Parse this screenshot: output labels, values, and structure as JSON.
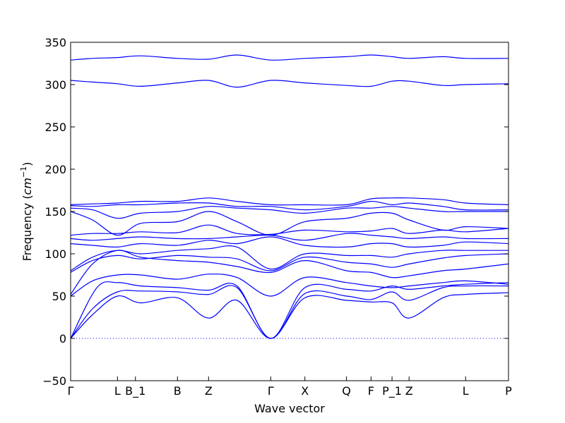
{
  "chart_data": {
    "type": "line",
    "title": "",
    "xlabel": "Wave vector",
    "ylabel": "Frequency (cm⁻¹)",
    "ylabel_parts": {
      "prefix": "Frequency (",
      "unit": "cm",
      "exp": "−1",
      "suffix": ")"
    },
    "ylim": [
      -50,
      350
    ],
    "yticks": [
      -50,
      0,
      50,
      100,
      150,
      200,
      250,
      300,
      350
    ],
    "grid": false,
    "legend": "none",
    "line_color": "#0000ff",
    "high_symmetry_points": [
      {
        "label": "Γ",
        "x": 0.0
      },
      {
        "label": "L",
        "x": 0.107
      },
      {
        "label": "B_1",
        "x": 0.148
      },
      {
        "label": "B",
        "x": 0.244
      },
      {
        "label": "Z",
        "x": 0.315
      },
      {
        "label": "Γ",
        "x": 0.457
      },
      {
        "label": "X",
        "x": 0.535
      },
      {
        "label": "Q",
        "x": 0.63
      },
      {
        "label": "F",
        "x": 0.686
      },
      {
        "label": "P_1",
        "x": 0.734
      },
      {
        "label": "Z",
        "x": 0.773
      },
      {
        "label": "L",
        "x": 0.902
      },
      {
        "label": "P",
        "x": 1.0
      }
    ],
    "zero_line": {
      "y": 0,
      "style": "dotted"
    },
    "series": [
      {
        "x": [
          0,
          0.05,
          0.107,
          0.16,
          0.244,
          0.315,
          0.38,
          0.457,
          0.535,
          0.63,
          0.686,
          0.734,
          0.773,
          0.85,
          0.902,
          1.0
        ],
        "values": [
          0,
          28,
          50,
          42,
          48,
          24,
          45,
          0,
          48,
          45,
          43,
          42,
          24,
          48,
          52,
          54
        ]
      },
      {
        "x": [
          0,
          0.05,
          0.107,
          0.16,
          0.244,
          0.315,
          0.38,
          0.457,
          0.535,
          0.63,
          0.686,
          0.734,
          0.773,
          0.85,
          0.902,
          1.0
        ],
        "values": [
          0,
          35,
          55,
          56,
          55,
          52,
          60,
          0,
          53,
          50,
          46,
          55,
          45,
          60,
          62,
          62
        ]
      },
      {
        "x": [
          0,
          0.06,
          0.107,
          0.16,
          0.244,
          0.315,
          0.38,
          0.457,
          0.535,
          0.63,
          0.686,
          0.734,
          0.773,
          0.85,
          0.902,
          1.0
        ],
        "values": [
          0,
          60,
          66,
          62,
          60,
          57,
          62,
          0,
          60,
          58,
          56,
          62,
          58,
          62,
          64,
          66
        ]
      },
      {
        "x": [
          0,
          0.05,
          0.107,
          0.16,
          0.244,
          0.315,
          0.38,
          0.457,
          0.535,
          0.63,
          0.686,
          0.734,
          0.773,
          0.85,
          0.902,
          1.0
        ],
        "values": [
          50,
          68,
          75,
          75,
          70,
          76,
          72,
          50,
          72,
          66,
          62,
          60,
          62,
          66,
          68,
          64
        ]
      },
      {
        "x": [
          0,
          0.05,
          0.107,
          0.16,
          0.244,
          0.315,
          0.38,
          0.457,
          0.535,
          0.63,
          0.686,
          0.734,
          0.773,
          0.85,
          0.902,
          1.0
        ],
        "values": [
          52,
          88,
          104,
          96,
          92,
          90,
          85,
          78,
          92,
          80,
          78,
          72,
          74,
          80,
          82,
          88
        ]
      },
      {
        "x": [
          0,
          0.05,
          0.107,
          0.16,
          0.244,
          0.315,
          0.38,
          0.457,
          0.535,
          0.63,
          0.686,
          0.734,
          0.773,
          0.85,
          0.902,
          1.0
        ],
        "values": [
          78,
          92,
          98,
          94,
          98,
          96,
          94,
          80,
          96,
          90,
          88,
          84,
          88,
          95,
          98,
          100
        ]
      },
      {
        "x": [
          0,
          0.05,
          0.107,
          0.16,
          0.244,
          0.315,
          0.38,
          0.457,
          0.535,
          0.63,
          0.686,
          0.734,
          0.773,
          0.85,
          0.902,
          1.0
        ],
        "values": [
          80,
          96,
          104,
          100,
          104,
          106,
          108,
          82,
          100,
          98,
          98,
          96,
          100,
          104,
          104,
          104
        ]
      },
      {
        "x": [
          0,
          0.05,
          0.107,
          0.16,
          0.244,
          0.315,
          0.38,
          0.457,
          0.535,
          0.63,
          0.686,
          0.734,
          0.773,
          0.85,
          0.902,
          1.0
        ],
        "values": [
          112,
          110,
          108,
          112,
          110,
          116,
          112,
          120,
          110,
          108,
          112,
          112,
          108,
          110,
          114,
          112
        ]
      },
      {
        "x": [
          0,
          0.05,
          0.107,
          0.16,
          0.244,
          0.315,
          0.38,
          0.457,
          0.535,
          0.63,
          0.686,
          0.734,
          0.773,
          0.85,
          0.902,
          1.0
        ],
        "values": [
          118,
          116,
          118,
          120,
          118,
          118,
          120,
          122,
          116,
          124,
          122,
          120,
          118,
          120,
          118,
          118
        ]
      },
      {
        "x": [
          0,
          0.05,
          0.107,
          0.16,
          0.244,
          0.315,
          0.38,
          0.457,
          0.535,
          0.63,
          0.686,
          0.734,
          0.773,
          0.85,
          0.902,
          1.0
        ],
        "values": [
          122,
          124,
          124,
          126,
          125,
          134,
          124,
          123,
          128,
          126,
          127,
          130,
          124,
          128,
          126,
          130
        ]
      },
      {
        "x": [
          0,
          0.05,
          0.107,
          0.16,
          0.244,
          0.315,
          0.38,
          0.457,
          0.535,
          0.63,
          0.686,
          0.734,
          0.773,
          0.85,
          0.902,
          1.0
        ],
        "values": [
          150,
          140,
          122,
          136,
          138,
          150,
          138,
          122,
          138,
          142,
          148,
          148,
          140,
          128,
          132,
          130
        ]
      },
      {
        "x": [
          0,
          0.05,
          0.107,
          0.16,
          0.244,
          0.315,
          0.38,
          0.457,
          0.535,
          0.63,
          0.686,
          0.734,
          0.773,
          0.85,
          0.902,
          1.0
        ],
        "values": [
          154,
          152,
          142,
          148,
          150,
          156,
          154,
          152,
          148,
          154,
          154,
          156,
          154,
          150,
          150,
          150
        ]
      },
      {
        "x": [
          0,
          0.05,
          0.107,
          0.16,
          0.244,
          0.315,
          0.38,
          0.457,
          0.535,
          0.63,
          0.686,
          0.734,
          0.773,
          0.85,
          0.902,
          1.0
        ],
        "values": [
          157,
          156,
          158,
          158,
          160,
          160,
          156,
          156,
          152,
          156,
          162,
          158,
          160,
          156,
          152,
          152
        ]
      },
      {
        "x": [
          0,
          0.05,
          0.107,
          0.16,
          0.244,
          0.315,
          0.38,
          0.457,
          0.535,
          0.63,
          0.686,
          0.734,
          0.773,
          0.85,
          0.902,
          1.0
        ],
        "values": [
          158,
          159,
          160,
          162,
          162,
          166,
          162,
          158,
          158,
          158,
          165,
          166,
          166,
          164,
          160,
          158
        ]
      },
      {
        "x": [
          0,
          0.05,
          0.107,
          0.16,
          0.244,
          0.315,
          0.38,
          0.457,
          0.535,
          0.63,
          0.686,
          0.734,
          0.773,
          0.85,
          0.902,
          1.0
        ],
        "values": [
          305,
          303,
          301,
          298,
          302,
          305,
          297,
          305,
          302,
          299,
          298,
          304,
          304,
          299,
          300,
          301
        ]
      },
      {
        "x": [
          0,
          0.05,
          0.107,
          0.16,
          0.244,
          0.315,
          0.38,
          0.457,
          0.535,
          0.63,
          0.686,
          0.734,
          0.773,
          0.85,
          0.902,
          1.0
        ],
        "values": [
          329,
          331,
          332,
          334,
          331,
          330,
          335,
          329,
          331,
          333,
          335,
          333,
          331,
          333,
          331,
          331
        ]
      }
    ]
  }
}
